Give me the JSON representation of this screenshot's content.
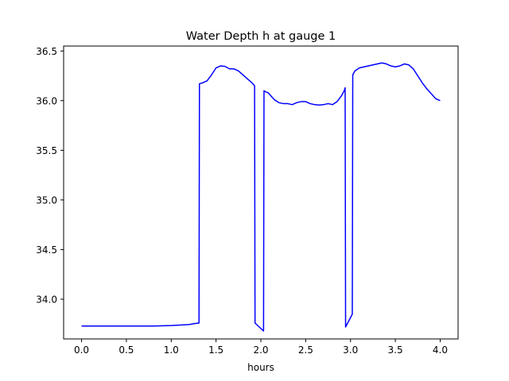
{
  "chart_data": {
    "type": "line",
    "title": "Water Depth h at gauge 1",
    "xlabel": "hours",
    "ylabel": "",
    "xlim": [
      -0.2,
      4.2
    ],
    "ylim": [
      33.6,
      36.55
    ],
    "xticks": [
      0.0,
      0.5,
      1.0,
      1.5,
      2.0,
      2.5,
      3.0,
      3.5,
      4.0
    ],
    "xtick_labels": [
      "0.0",
      "0.5",
      "1.0",
      "1.5",
      "2.0",
      "2.5",
      "3.0",
      "3.5",
      "4.0"
    ],
    "yticks": [
      34.0,
      34.5,
      35.0,
      35.5,
      36.0,
      36.5
    ],
    "ytick_labels": [
      "34.0",
      "34.5",
      "35.0",
      "35.5",
      "36.0",
      "36.5"
    ],
    "grid": false,
    "series": [
      {
        "color": "#0000ff",
        "x": [
          0.0,
          0.2,
          0.4,
          0.6,
          0.8,
          1.0,
          1.1,
          1.2,
          1.26,
          1.31,
          1.315,
          1.35,
          1.4,
          1.45,
          1.5,
          1.55,
          1.6,
          1.65,
          1.7,
          1.75,
          1.8,
          1.85,
          1.9,
          1.93,
          1.935,
          2.03,
          2.035,
          2.05,
          2.08,
          2.1,
          2.15,
          2.2,
          2.25,
          2.3,
          2.35,
          2.4,
          2.45,
          2.5,
          2.55,
          2.6,
          2.65,
          2.7,
          2.75,
          2.8,
          2.85,
          2.9,
          2.93,
          2.94,
          2.945,
          3.02,
          3.025,
          3.05,
          3.1,
          3.15,
          3.2,
          3.25,
          3.3,
          3.35,
          3.4,
          3.45,
          3.5,
          3.55,
          3.6,
          3.65,
          3.7,
          3.75,
          3.8,
          3.85,
          3.9,
          3.95,
          4.0
        ],
        "y": [
          33.73,
          33.73,
          33.73,
          33.73,
          33.73,
          33.735,
          33.74,
          33.745,
          33.755,
          33.76,
          36.17,
          36.18,
          36.2,
          36.26,
          36.33,
          36.35,
          36.345,
          36.32,
          36.32,
          36.3,
          36.26,
          36.22,
          36.18,
          36.15,
          33.76,
          33.68,
          36.1,
          36.09,
          36.08,
          36.06,
          36.01,
          35.98,
          35.97,
          35.97,
          35.96,
          35.98,
          35.99,
          35.99,
          35.97,
          35.96,
          35.955,
          35.96,
          35.97,
          35.96,
          35.99,
          36.05,
          36.1,
          36.13,
          33.72,
          33.85,
          36.26,
          36.3,
          36.33,
          36.34,
          36.35,
          36.36,
          36.37,
          36.38,
          36.37,
          36.35,
          36.34,
          36.35,
          36.37,
          36.36,
          36.32,
          36.25,
          36.18,
          36.12,
          36.07,
          36.02,
          36.0
        ]
      }
    ]
  }
}
